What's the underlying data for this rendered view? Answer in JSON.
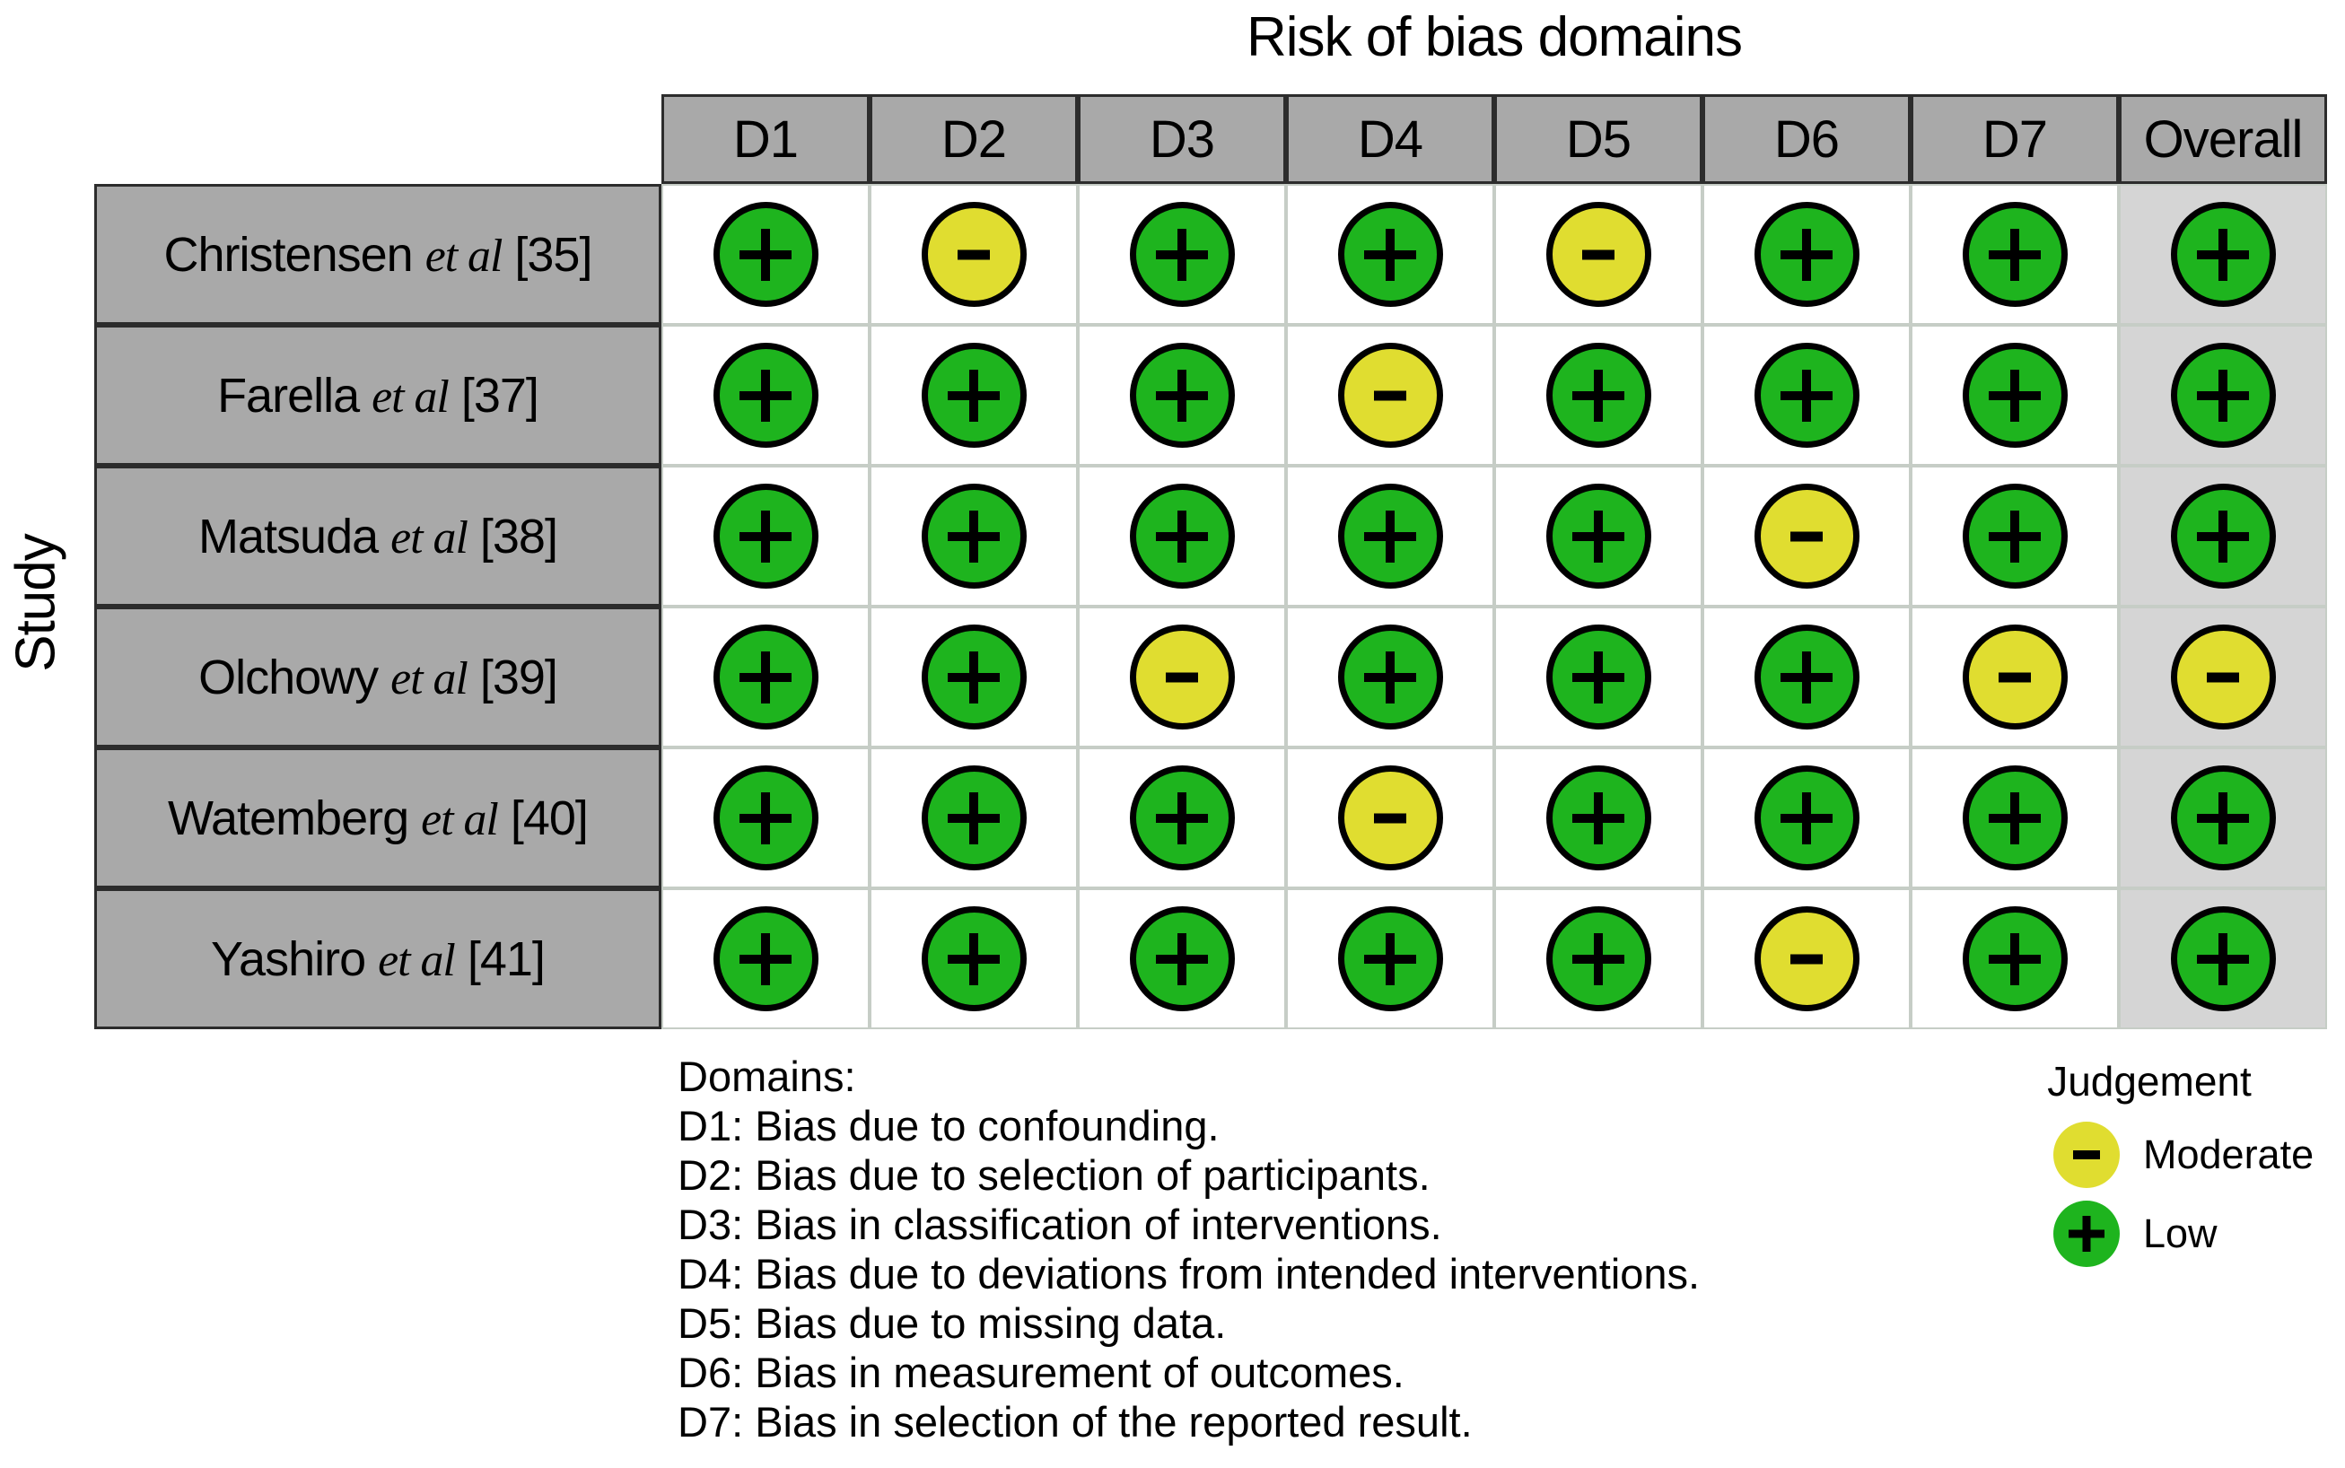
{
  "title": "Risk of bias domains",
  "study_axis_label": "Study",
  "columns": [
    "D1",
    "D2",
    "D3",
    "D4",
    "D5",
    "D6",
    "D7",
    "Overall"
  ],
  "rows": [
    {
      "study": "Christensen",
      "etal": "et al",
      "ref": "[35]",
      "judgements": [
        "low",
        "moderate",
        "low",
        "low",
        "moderate",
        "low",
        "low",
        "low"
      ]
    },
    {
      "study": "Farella",
      "etal": "et al",
      "ref": "[37]",
      "judgements": [
        "low",
        "low",
        "low",
        "moderate",
        "low",
        "low",
        "low",
        "low"
      ]
    },
    {
      "study": "Matsuda",
      "etal": "et al",
      "ref": "[38]",
      "judgements": [
        "low",
        "low",
        "low",
        "low",
        "low",
        "moderate",
        "low",
        "low"
      ]
    },
    {
      "study": "Olchowy",
      "etal": "et al",
      "ref": "[39]",
      "judgements": [
        "low",
        "low",
        "moderate",
        "low",
        "low",
        "low",
        "moderate",
        "moderate"
      ]
    },
    {
      "study": "Watemberg",
      "etal": "et al",
      "ref": "[40]",
      "judgements": [
        "low",
        "low",
        "low",
        "moderate",
        "low",
        "low",
        "low",
        "low"
      ]
    },
    {
      "study": "Yashiro",
      "etal": "et al",
      "ref": "[41]",
      "judgements": [
        "low",
        "low",
        "low",
        "low",
        "low",
        "moderate",
        "low",
        "low"
      ]
    }
  ],
  "judgement_symbols": {
    "low": "+",
    "moderate": "-"
  },
  "colors": {
    "low": "#1EB41E",
    "moderate": "#E0DD30"
  },
  "domains_note": {
    "heading": "Domains:",
    "items": [
      "D1: Bias due to confounding.",
      "D2: Bias due to selection of participants.",
      "D3: Bias in classification of interventions.",
      "D4: Bias due to deviations from intended interventions.",
      "D5: Bias due to missing data.",
      "D6: Bias in measurement of outcomes.",
      "D7: Bias in selection of the reported result."
    ]
  },
  "legend": {
    "title": "Judgement",
    "items": [
      {
        "label": "Moderate",
        "judgement": "moderate",
        "symbol": "-"
      },
      {
        "label": "Low",
        "judgement": "low",
        "symbol": "+"
      }
    ]
  },
  "chart_data": {
    "type": "heatmap",
    "title": "Risk of bias domains",
    "x_axis_label": "Risk of bias domains",
    "y_axis_label": "Study",
    "x_categories": [
      "D1",
      "D2",
      "D3",
      "D4",
      "D5",
      "D6",
      "D7",
      "Overall"
    ],
    "y_categories": [
      "Christensen et al [35]",
      "Farella et al [37]",
      "Matsuda et al [38]",
      "Olchowy et al [39]",
      "Watemberg et al [40]",
      "Yashiro et al [41]"
    ],
    "values": [
      [
        "Low",
        "Moderate",
        "Low",
        "Low",
        "Moderate",
        "Low",
        "Low",
        "Low"
      ],
      [
        "Low",
        "Low",
        "Low",
        "Moderate",
        "Low",
        "Low",
        "Low",
        "Low"
      ],
      [
        "Low",
        "Low",
        "Low",
        "Low",
        "Low",
        "Moderate",
        "Low",
        "Low"
      ],
      [
        "Low",
        "Low",
        "Moderate",
        "Low",
        "Low",
        "Low",
        "Moderate",
        "Moderate"
      ],
      [
        "Low",
        "Low",
        "Low",
        "Moderate",
        "Low",
        "Low",
        "Low",
        "Low"
      ],
      [
        "Low",
        "Low",
        "Low",
        "Low",
        "Low",
        "Moderate",
        "Low",
        "Low"
      ]
    ],
    "legend_position": "bottom-right",
    "legend": {
      "title": "Judgement",
      "entries": [
        {
          "label": "Moderate",
          "symbol": "-",
          "color": "#E0DD30"
        },
        {
          "label": "Low",
          "symbol": "+",
          "color": "#1EB41E"
        }
      ]
    }
  }
}
